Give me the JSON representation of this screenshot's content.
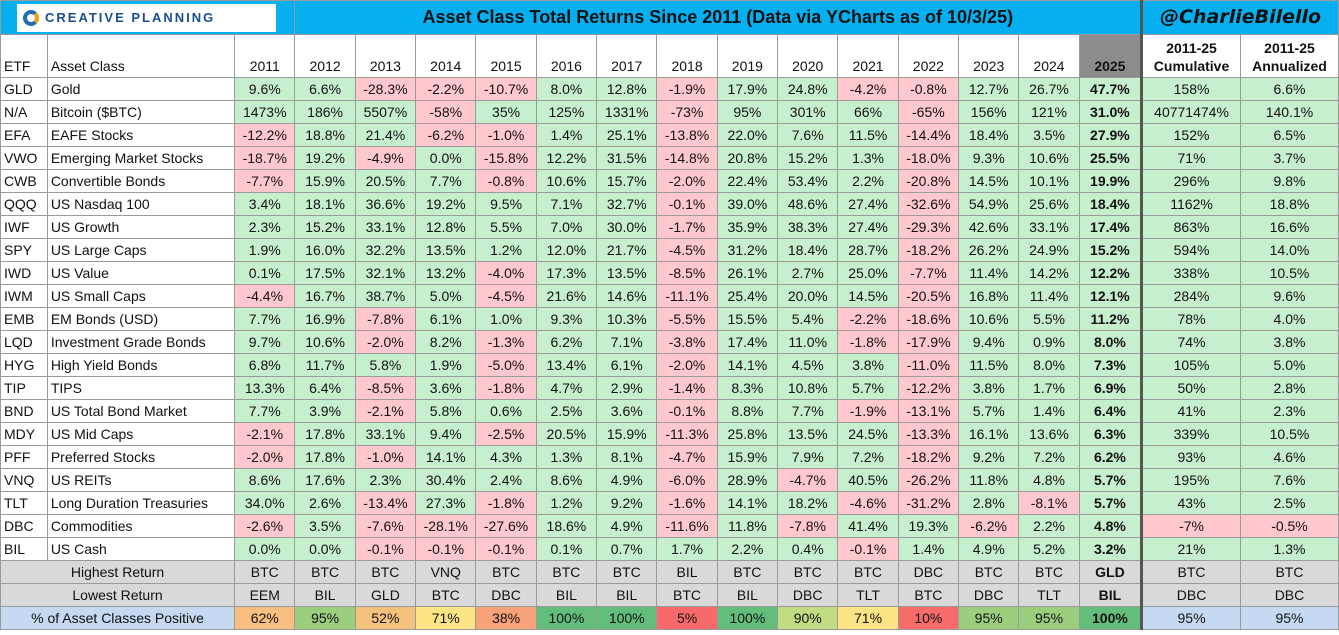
{
  "header": {
    "logo_text": "CREATIVE PLANNING",
    "title": "Asset Class Total Returns Since 2011 (Data via YCharts as of 10/3/25)",
    "handle": "@CharlieBilello"
  },
  "colors": {
    "title_bar": "#06b0f0",
    "positive_cell": "#c6efce",
    "negative_cell": "#ffc7ce",
    "summary_row": "#d9d9d9",
    "year_2025_header": "#8c8c8c",
    "pct_label": "#c5d9f1"
  },
  "chart_data": {
    "type": "table",
    "columns": [
      "ETF",
      "Asset Class",
      "2011",
      "2012",
      "2013",
      "2014",
      "2015",
      "2016",
      "2017",
      "2018",
      "2019",
      "2020",
      "2021",
      "2022",
      "2023",
      "2024",
      "2025",
      "2011-25 Cumulative",
      "2011-25 Annualized"
    ],
    "years": [
      "2011",
      "2012",
      "2013",
      "2014",
      "2015",
      "2016",
      "2017",
      "2018",
      "2019",
      "2020",
      "2021",
      "2022",
      "2023",
      "2024",
      "2025"
    ],
    "rows": [
      {
        "etf": "GLD",
        "asset": "Gold",
        "r": [
          "9.6%",
          "6.6%",
          "-28.3%",
          "-2.2%",
          "-10.7%",
          "8.0%",
          "12.8%",
          "-1.9%",
          "17.9%",
          "24.8%",
          "-4.2%",
          "-0.8%",
          "12.7%",
          "26.7%",
          "47.7%"
        ],
        "cum": "158%",
        "ann": "6.6%"
      },
      {
        "etf": "N/A",
        "asset": "Bitcoin ($BTC)",
        "r": [
          "1473%",
          "186%",
          "5507%",
          "-58%",
          "35%",
          "125%",
          "1331%",
          "-73%",
          "95%",
          "301%",
          "66%",
          "-65%",
          "156%",
          "121%",
          "31.0%"
        ],
        "cum": "40771474%",
        "ann": "140.1%"
      },
      {
        "etf": "EFA",
        "asset": "EAFE Stocks",
        "r": [
          "-12.2%",
          "18.8%",
          "21.4%",
          "-6.2%",
          "-1.0%",
          "1.4%",
          "25.1%",
          "-13.8%",
          "22.0%",
          "7.6%",
          "11.5%",
          "-14.4%",
          "18.4%",
          "3.5%",
          "27.9%"
        ],
        "cum": "152%",
        "ann": "6.5%"
      },
      {
        "etf": "VWO",
        "asset": "Emerging Market Stocks",
        "r": [
          "-18.7%",
          "19.2%",
          "-4.9%",
          "0.0%",
          "-15.8%",
          "12.2%",
          "31.5%",
          "-14.8%",
          "20.8%",
          "15.2%",
          "1.3%",
          "-18.0%",
          "9.3%",
          "10.6%",
          "25.5%"
        ],
        "cum": "71%",
        "ann": "3.7%"
      },
      {
        "etf": "CWB",
        "asset": "Convertible Bonds",
        "r": [
          "-7.7%",
          "15.9%",
          "20.5%",
          "7.7%",
          "-0.8%",
          "10.6%",
          "15.7%",
          "-2.0%",
          "22.4%",
          "53.4%",
          "2.2%",
          "-20.8%",
          "14.5%",
          "10.1%",
          "19.9%"
        ],
        "cum": "296%",
        "ann": "9.8%"
      },
      {
        "etf": "QQQ",
        "asset": "US Nasdaq 100",
        "r": [
          "3.4%",
          "18.1%",
          "36.6%",
          "19.2%",
          "9.5%",
          "7.1%",
          "32.7%",
          "-0.1%",
          "39.0%",
          "48.6%",
          "27.4%",
          "-32.6%",
          "54.9%",
          "25.6%",
          "18.4%"
        ],
        "cum": "1162%",
        "ann": "18.8%"
      },
      {
        "etf": "IWF",
        "asset": "US Growth",
        "r": [
          "2.3%",
          "15.2%",
          "33.1%",
          "12.8%",
          "5.5%",
          "7.0%",
          "30.0%",
          "-1.7%",
          "35.9%",
          "38.3%",
          "27.4%",
          "-29.3%",
          "42.6%",
          "33.1%",
          "17.4%"
        ],
        "cum": "863%",
        "ann": "16.6%"
      },
      {
        "etf": "SPY",
        "asset": "US Large Caps",
        "r": [
          "1.9%",
          "16.0%",
          "32.2%",
          "13.5%",
          "1.2%",
          "12.0%",
          "21.7%",
          "-4.5%",
          "31.2%",
          "18.4%",
          "28.7%",
          "-18.2%",
          "26.2%",
          "24.9%",
          "15.2%"
        ],
        "cum": "594%",
        "ann": "14.0%"
      },
      {
        "etf": "IWD",
        "asset": "US Value",
        "r": [
          "0.1%",
          "17.5%",
          "32.1%",
          "13.2%",
          "-4.0%",
          "17.3%",
          "13.5%",
          "-8.5%",
          "26.1%",
          "2.7%",
          "25.0%",
          "-7.7%",
          "11.4%",
          "14.2%",
          "12.2%"
        ],
        "cum": "338%",
        "ann": "10.5%"
      },
      {
        "etf": "IWM",
        "asset": "US Small Caps",
        "r": [
          "-4.4%",
          "16.7%",
          "38.7%",
          "5.0%",
          "-4.5%",
          "21.6%",
          "14.6%",
          "-11.1%",
          "25.4%",
          "20.0%",
          "14.5%",
          "-20.5%",
          "16.8%",
          "11.4%",
          "12.1%"
        ],
        "cum": "284%",
        "ann": "9.6%"
      },
      {
        "etf": "EMB",
        "asset": "EM Bonds (USD)",
        "r": [
          "7.7%",
          "16.9%",
          "-7.8%",
          "6.1%",
          "1.0%",
          "9.3%",
          "10.3%",
          "-5.5%",
          "15.5%",
          "5.4%",
          "-2.2%",
          "-18.6%",
          "10.6%",
          "5.5%",
          "11.2%"
        ],
        "cum": "78%",
        "ann": "4.0%"
      },
      {
        "etf": "LQD",
        "asset": "Investment Grade Bonds",
        "r": [
          "9.7%",
          "10.6%",
          "-2.0%",
          "8.2%",
          "-1.3%",
          "6.2%",
          "7.1%",
          "-3.8%",
          "17.4%",
          "11.0%",
          "-1.8%",
          "-17.9%",
          "9.4%",
          "0.9%",
          "8.0%"
        ],
        "cum": "74%",
        "ann": "3.8%"
      },
      {
        "etf": "HYG",
        "asset": "High Yield Bonds",
        "r": [
          "6.8%",
          "11.7%",
          "5.8%",
          "1.9%",
          "-5.0%",
          "13.4%",
          "6.1%",
          "-2.0%",
          "14.1%",
          "4.5%",
          "3.8%",
          "-11.0%",
          "11.5%",
          "8.0%",
          "7.3%"
        ],
        "cum": "105%",
        "ann": "5.0%"
      },
      {
        "etf": "TIP",
        "asset": "TIPS",
        "r": [
          "13.3%",
          "6.4%",
          "-8.5%",
          "3.6%",
          "-1.8%",
          "4.7%",
          "2.9%",
          "-1.4%",
          "8.3%",
          "10.8%",
          "5.7%",
          "-12.2%",
          "3.8%",
          "1.7%",
          "6.9%"
        ],
        "cum": "50%",
        "ann": "2.8%"
      },
      {
        "etf": "BND",
        "asset": "US Total Bond Market",
        "r": [
          "7.7%",
          "3.9%",
          "-2.1%",
          "5.8%",
          "0.6%",
          "2.5%",
          "3.6%",
          "-0.1%",
          "8.8%",
          "7.7%",
          "-1.9%",
          "-13.1%",
          "5.7%",
          "1.4%",
          "6.4%"
        ],
        "cum": "41%",
        "ann": "2.3%"
      },
      {
        "etf": "MDY",
        "asset": "US Mid Caps",
        "r": [
          "-2.1%",
          "17.8%",
          "33.1%",
          "9.4%",
          "-2.5%",
          "20.5%",
          "15.9%",
          "-11.3%",
          "25.8%",
          "13.5%",
          "24.5%",
          "-13.3%",
          "16.1%",
          "13.6%",
          "6.3%"
        ],
        "cum": "339%",
        "ann": "10.5%"
      },
      {
        "etf": "PFF",
        "asset": "Preferred Stocks",
        "r": [
          "-2.0%",
          "17.8%",
          "-1.0%",
          "14.1%",
          "4.3%",
          "1.3%",
          "8.1%",
          "-4.7%",
          "15.9%",
          "7.9%",
          "7.2%",
          "-18.2%",
          "9.2%",
          "7.2%",
          "6.2%"
        ],
        "cum": "93%",
        "ann": "4.6%"
      },
      {
        "etf": "VNQ",
        "asset": "US REITs",
        "r": [
          "8.6%",
          "17.6%",
          "2.3%",
          "30.4%",
          "2.4%",
          "8.6%",
          "4.9%",
          "-6.0%",
          "28.9%",
          "-4.7%",
          "40.5%",
          "-26.2%",
          "11.8%",
          "4.8%",
          "5.7%"
        ],
        "cum": "195%",
        "ann": "7.6%"
      },
      {
        "etf": "TLT",
        "asset": "Long Duration Treasuries",
        "r": [
          "34.0%",
          "2.6%",
          "-13.4%",
          "27.3%",
          "-1.8%",
          "1.2%",
          "9.2%",
          "-1.6%",
          "14.1%",
          "18.2%",
          "-4.6%",
          "-31.2%",
          "2.8%",
          "-8.1%",
          "5.7%"
        ],
        "cum": "43%",
        "ann": "2.5%"
      },
      {
        "etf": "DBC",
        "asset": "Commodities",
        "r": [
          "-2.6%",
          "3.5%",
          "-7.6%",
          "-28.1%",
          "-27.6%",
          "18.6%",
          "4.9%",
          "-11.6%",
          "11.8%",
          "-7.8%",
          "41.4%",
          "19.3%",
          "-6.2%",
          "2.2%",
          "4.8%"
        ],
        "cum": "-7%",
        "ann": "-0.5%"
      },
      {
        "etf": "BIL",
        "asset": "US Cash",
        "r": [
          "0.0%",
          "0.0%",
          "-0.1%",
          "-0.1%",
          "-0.1%",
          "0.1%",
          "0.7%",
          "1.7%",
          "2.2%",
          "0.4%",
          "-0.1%",
          "1.4%",
          "4.9%",
          "5.2%",
          "3.2%"
        ],
        "cum": "21%",
        "ann": "1.3%"
      }
    ],
    "summary": {
      "highest": {
        "label": "Highest Return",
        "values": [
          "BTC",
          "BTC",
          "BTC",
          "VNQ",
          "BTC",
          "BTC",
          "BTC",
          "BIL",
          "BTC",
          "BTC",
          "BTC",
          "DBC",
          "BTC",
          "BTC",
          "GLD",
          "BTC",
          "BTC"
        ]
      },
      "lowest": {
        "label": "Lowest Return",
        "values": [
          "EEM",
          "BIL",
          "GLD",
          "BTC",
          "DBC",
          "BIL",
          "BIL",
          "BTC",
          "BIL",
          "DBC",
          "TLT",
          "BTC",
          "DBC",
          "TLT",
          "BIL",
          "DBC",
          "DBC"
        ]
      },
      "positive": {
        "label": "% of Asset Classes Positive",
        "values": [
          "62%",
          "95%",
          "52%",
          "71%",
          "38%",
          "100%",
          "100%",
          "5%",
          "100%",
          "90%",
          "71%",
          "10%",
          "95%",
          "95%",
          "100%",
          "95%",
          "95%"
        ],
        "colors": [
          "#f9bf80",
          "#9bcf7e",
          "#f5c27d",
          "#fce383",
          "#f8a27a",
          "#63be7b",
          "#63be7b",
          "#f8696b",
          "#63be7b",
          "#c1dc81",
          "#fce383",
          "#f86b6b",
          "#9bcf7e",
          "#9bcf7e",
          "#63be7b",
          "#c5d9f1",
          "#c5d9f1"
        ]
      }
    }
  }
}
